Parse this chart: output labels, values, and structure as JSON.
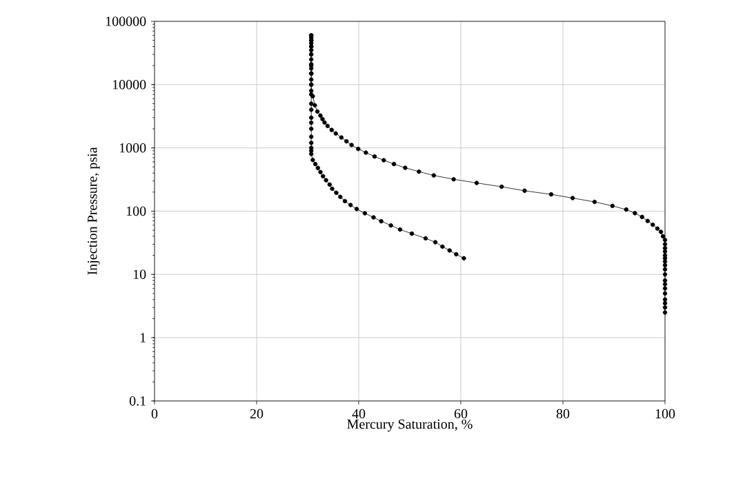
{
  "chart_data": {
    "type": "line",
    "xlabel": "Mercury Saturation, %",
    "ylabel": "Injection Pressure, psia",
    "xlim": [
      0,
      100
    ],
    "ylim": [
      0.1,
      100000
    ],
    "xticks": [
      0,
      20,
      40,
      60,
      80,
      100
    ],
    "yticks": [
      0.1,
      1,
      10,
      100,
      1000,
      10000,
      100000
    ],
    "log": "y",
    "grid": true,
    "marker": "circle",
    "line_style": "solid",
    "series": [
      {
        "color": "#000000",
        "x": [
          100,
          100,
          100,
          100,
          100,
          100,
          100,
          100,
          100,
          100,
          100,
          100,
          100,
          100,
          100,
          100,
          100,
          100,
          99.6,
          99.2,
          98.5,
          97.6,
          96.6,
          95.5,
          94.1,
          92.4,
          89.7,
          86.2,
          81.9,
          77.7,
          72.5,
          68.0,
          63.1,
          58.6,
          54.7,
          51.8,
          49.1,
          46.9,
          44.9,
          43.1,
          41.4,
          39.9,
          38.6,
          37.6,
          36.6,
          35.5,
          34.7,
          33.9,
          33.3,
          32.9,
          32.5,
          31.9,
          31.4,
          31.0,
          30.7,
          30.7,
          30.7,
          30.7,
          30.7,
          30.7,
          30.7,
          30.7,
          30.7,
          30.7,
          30.7,
          30.7,
          30.7,
          30.7
        ],
        "values": [
          2.5,
          3,
          3.5,
          4,
          5,
          6,
          7,
          8,
          10,
          12,
          14,
          16,
          18,
          20,
          23,
          26,
          30,
          35,
          40,
          47,
          53,
          61,
          70,
          81,
          93,
          106,
          121,
          140,
          161,
          184,
          210,
          243,
          279,
          319,
          367,
          421,
          484,
          555,
          638,
          731,
          841,
          963,
          1110,
          1270,
          1460,
          1690,
          1920,
          2220,
          2520,
          2850,
          3240,
          3760,
          4710,
          6530,
          8000,
          10000,
          12000,
          15000,
          18000,
          21000,
          25000,
          30000,
          35000,
          40000,
          45000,
          50000,
          55000,
          60000
        ]
      },
      {
        "color": "#000000",
        "x": [
          30.7,
          30.7,
          30.7,
          30.7,
          30.7,
          30.7,
          30.7,
          30.7,
          30.7,
          30.7,
          30.7,
          30.7,
          30.7,
          30.7,
          30.7,
          30.7,
          30.7,
          30.7,
          31.0,
          31.5,
          32.0,
          32.5,
          33.0,
          33.6,
          34.3,
          34.8,
          35.6,
          36.4,
          37.3,
          38.4,
          39.6,
          41.2,
          42.9,
          44.4,
          46.3,
          48.1,
          50.4,
          53.1,
          55.0,
          56.4,
          57.8,
          59.1,
          60.4,
          60.6
        ],
        "values": [
          60000,
          50000,
          40000,
          30000,
          20000,
          15000,
          10000,
          7000,
          5000,
          4000,
          3000,
          2500,
          2000,
          1500,
          1200,
          1000,
          900,
          800,
          644,
          555,
          481,
          414,
          356,
          308,
          263,
          226,
          195,
          168,
          144,
          125,
          108,
          92.5,
          79.6,
          69.2,
          59.5,
          51.2,
          44.1,
          37.2,
          32.3,
          27.5,
          23.9,
          20.8,
          null,
          18
        ]
      }
    ]
  }
}
